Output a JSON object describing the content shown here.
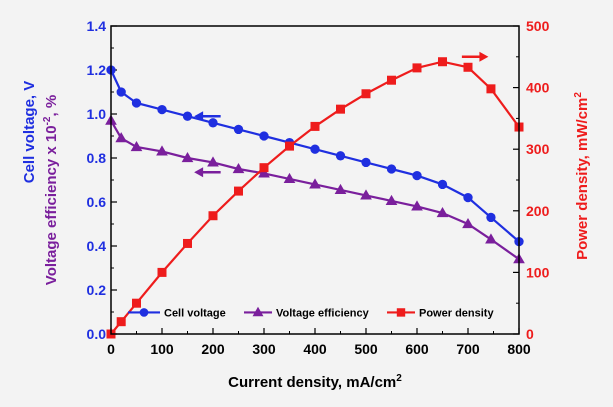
{
  "chart_data": {
    "type": "line",
    "xlabel": "Current density, mA/cm",
    "xlabel_sup": "2",
    "y_left_label_line1": "Cell voltage, V",
    "y_left_label_line2": "Voltage efficiency x 10",
    "y_left_label_line2_sup": "-2",
    "y_left_label_line2_tail": ", %",
    "y_right_label": "Power density, mW/cm",
    "y_right_label_sup": "2",
    "xlim": [
      0,
      800
    ],
    "ylim_left": [
      0,
      1.4
    ],
    "ylim_right": [
      0,
      500
    ],
    "x_ticks": [
      0,
      100,
      200,
      300,
      400,
      500,
      600,
      700,
      800
    ],
    "y_left_ticks": [
      "0.0",
      "0.2",
      "0.4",
      "0.6",
      "0.8",
      "1.0",
      "1.2",
      "1.4"
    ],
    "y_left_tick_values": [
      0,
      0.2,
      0.4,
      0.6,
      0.8,
      1.0,
      1.2,
      1.4
    ],
    "y_right_ticks": [
      0,
      100,
      200,
      300,
      400,
      500
    ],
    "grid": false,
    "legend_position": "bottom",
    "series": [
      {
        "name": "Cell voltage",
        "axis": "left",
        "color": "#1f2fe0",
        "marker": "circle",
        "x": [
          0,
          20,
          50,
          100,
          150,
          200,
          250,
          300,
          350,
          400,
          450,
          500,
          550,
          600,
          650,
          700,
          745,
          800
        ],
        "y": [
          1.2,
          1.1,
          1.05,
          1.02,
          0.99,
          0.96,
          0.93,
          0.9,
          0.87,
          0.84,
          0.81,
          0.78,
          0.75,
          0.72,
          0.68,
          0.62,
          0.53,
          0.42
        ]
      },
      {
        "name": "Voltage efficiency",
        "axis": "left",
        "color": "#7a1f9c",
        "marker": "triangle",
        "x": [
          0,
          20,
          50,
          100,
          150,
          200,
          250,
          300,
          350,
          400,
          450,
          500,
          550,
          600,
          650,
          700,
          745,
          800
        ],
        "y": [
          0.97,
          0.89,
          0.85,
          0.83,
          0.8,
          0.78,
          0.75,
          0.73,
          0.705,
          0.68,
          0.655,
          0.63,
          0.605,
          0.58,
          0.55,
          0.5,
          0.43,
          0.34
        ]
      },
      {
        "name": "Power density",
        "axis": "right",
        "color": "#ee1c1c",
        "marker": "square",
        "x": [
          0,
          20,
          50,
          100,
          150,
          200,
          250,
          300,
          350,
          400,
          450,
          500,
          550,
          600,
          650,
          700,
          745,
          800
        ],
        "y": [
          0,
          20,
          50,
          100,
          147,
          192,
          232,
          270,
          305,
          337,
          365,
          390,
          412,
          432,
          442,
          433,
          398,
          336
        ]
      }
    ],
    "annotations": [
      {
        "type": "arrow",
        "direction": "left",
        "color": "#1f2fe0",
        "target": "left-axis"
      },
      {
        "type": "arrow",
        "direction": "left",
        "color": "#7a1f9c",
        "target": "left-axis"
      },
      {
        "type": "arrow",
        "direction": "right",
        "color": "#ee1c1c",
        "target": "right-axis"
      }
    ],
    "colors": {
      "left_axis": "#1f2fe0",
      "left_axis_secondary": "#7a1f9c",
      "right_axis": "#ee1c1c",
      "frame": "#000000",
      "background": "#f3f3f3"
    }
  }
}
